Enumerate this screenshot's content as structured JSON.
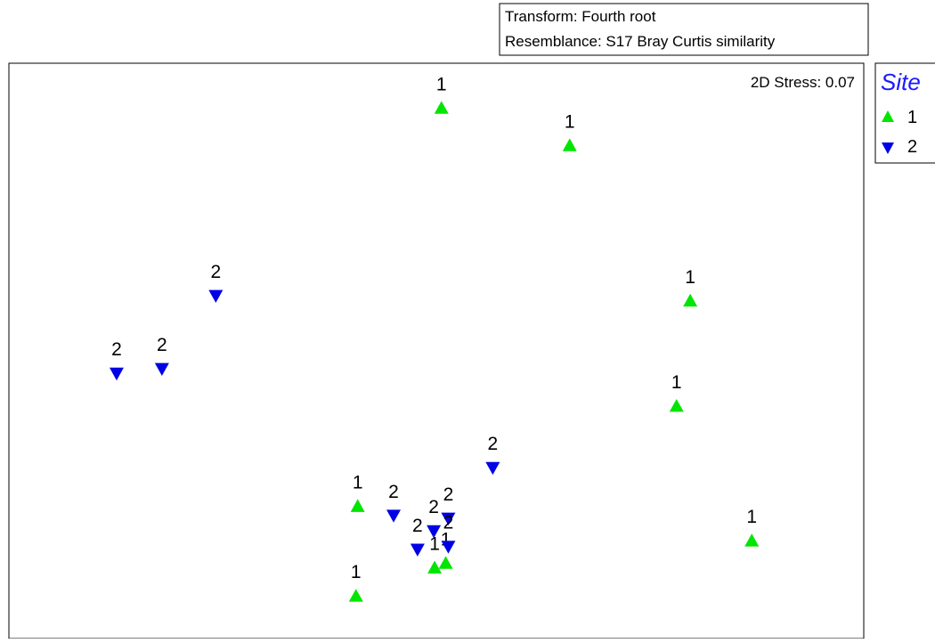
{
  "chart_data": {
    "type": "scatter",
    "plot_kind": "nMDS ordination",
    "info_box": {
      "lines": [
        "Transform: Fourth root",
        "Resemblance: S17 Bray Curtis similarity"
      ]
    },
    "stress_label": "2D Stress: 0.07",
    "legend": {
      "title": "Site",
      "title_color": "#1a1aff",
      "placement": "top-right, outside plot",
      "entries": [
        {
          "label": "1",
          "symbol": "triangle-up",
          "color": "#00e600"
        },
        {
          "label": "2",
          "symbol": "triangle-down",
          "color": "#0000e6"
        }
      ]
    },
    "xlim": [
      0,
      100
    ],
    "ylim": [
      0,
      100
    ],
    "axes_ticks": "none",
    "grid": false,
    "series": [
      {
        "name": "1",
        "symbol": "triangle-up",
        "color": "#00e600",
        "points": [
          {
            "x": 50.6,
            "y": 92.2,
            "label": "1"
          },
          {
            "x": 65.6,
            "y": 85.7,
            "label": "1"
          },
          {
            "x": 79.7,
            "y": 58.7,
            "label": "1"
          },
          {
            "x": 78.1,
            "y": 40.4,
            "label": "1"
          },
          {
            "x": 86.9,
            "y": 17.0,
            "label": "1"
          },
          {
            "x": 40.8,
            "y": 23.0,
            "label": "1"
          },
          {
            "x": 40.6,
            "y": 7.4,
            "label": "1"
          },
          {
            "x": 49.8,
            "y": 12.3,
            "label": "1"
          },
          {
            "x": 51.1,
            "y": 13.1,
            "label": "1"
          }
        ]
      },
      {
        "name": "2",
        "symbol": "triangle-down",
        "color": "#0000e6",
        "points": [
          {
            "x": 24.2,
            "y": 59.6,
            "label": "2"
          },
          {
            "x": 12.6,
            "y": 46.1,
            "label": "2"
          },
          {
            "x": 17.9,
            "y": 46.9,
            "label": "2"
          },
          {
            "x": 56.6,
            "y": 29.7,
            "label": "2"
          },
          {
            "x": 45.0,
            "y": 21.4,
            "label": "2"
          },
          {
            "x": 49.7,
            "y": 18.7,
            "label": "2"
          },
          {
            "x": 51.4,
            "y": 20.9,
            "label": "2"
          },
          {
            "x": 47.8,
            "y": 15.5,
            "label": "2"
          },
          {
            "x": 51.4,
            "y": 16.0,
            "label": "2"
          }
        ]
      }
    ]
  }
}
